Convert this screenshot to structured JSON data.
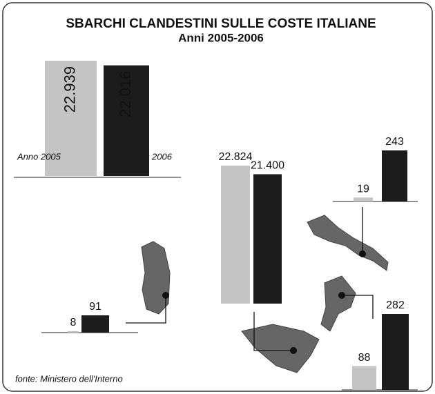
{
  "chart_data": {
    "type": "bar",
    "title": "SBARCHI CLANDESTINI SULLE COSTE ITALIANE",
    "subtitle": "Anni 2005-2006",
    "source": "fonte: Ministero dell'Interno",
    "colors": [
      "#c4c4c4",
      "#1c1c1c"
    ],
    "totals": {
      "categories": [
        "Anno 2005",
        "2006"
      ],
      "values": [
        22939,
        22016
      ],
      "value_labels": [
        "22.939",
        "22.016"
      ]
    },
    "regions": [
      {
        "values": [
          22824,
          21400
        ],
        "value_labels": [
          "22.824",
          "21.400"
        ]
      },
      {
        "values": [
          19,
          243
        ]
      },
      {
        "values": [
          8,
          91
        ]
      },
      {
        "values": [
          88,
          282
        ]
      }
    ]
  }
}
